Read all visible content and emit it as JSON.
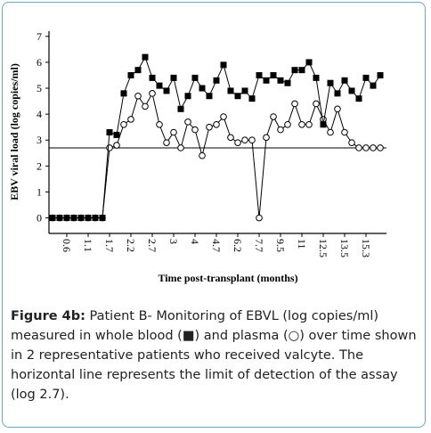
{
  "chart_data": {
    "type": "line",
    "y_label": "EBV viral load (log copies/ml)",
    "x_label": "Time post-transplant (months)",
    "categories": [
      null,
      null,
      "0.6",
      null,
      null,
      "1.1",
      null,
      null,
      "1.7",
      null,
      null,
      "2.2",
      null,
      null,
      "2.7",
      null,
      null,
      "3",
      null,
      null,
      "4",
      null,
      null,
      "4.7",
      null,
      null,
      "6.2",
      null,
      null,
      "7.7",
      null,
      null,
      "9.5",
      null,
      null,
      "11",
      null,
      null,
      "12.5",
      null,
      null,
      "13.5",
      null,
      null,
      "15.3",
      null,
      null
    ],
    "series": [
      {
        "name": "whole blood",
        "marker": "square",
        "color": "#000000",
        "values": [
          0,
          0,
          0,
          0,
          0,
          0,
          0,
          0,
          3.3,
          3.2,
          4.8,
          5.5,
          5.7,
          6.2,
          5.4,
          5.1,
          4.9,
          5.4,
          4.2,
          4.7,
          5.4,
          5.0,
          4.7,
          5.3,
          5.9,
          4.9,
          4.7,
          4.9,
          4.6,
          5.5,
          5.3,
          5.5,
          5.3,
          5.2,
          5.7,
          5.7,
          6.0,
          5.4,
          3.6,
          5.2,
          4.8,
          5.3,
          4.9,
          4.6,
          5.4,
          5.1,
          5.5
        ]
      },
      {
        "name": "plasma",
        "marker": "circle",
        "color": "#000000",
        "values": [
          0,
          0,
          0,
          0,
          0,
          0,
          0,
          0,
          2.7,
          2.8,
          3.6,
          3.8,
          4.7,
          4.3,
          4.8,
          3.6,
          2.9,
          3.3,
          2.7,
          3.7,
          3.4,
          2.4,
          3.5,
          3.6,
          3.9,
          3.1,
          2.9,
          3.0,
          3.0,
          0,
          3.1,
          3.9,
          3.4,
          3.6,
          4.4,
          3.6,
          3.6,
          4.4,
          3.8,
          3.3,
          4.2,
          3.3,
          2.9,
          2.7,
          2.7,
          2.7,
          2.7
        ]
      }
    ],
    "reference_line": 2.7,
    "ylim": [
      -0.6,
      7.2
    ],
    "yticks": [
      0,
      1,
      2,
      3,
      4,
      5,
      6,
      7
    ]
  },
  "caption": {
    "label": "Figure 4b:",
    "text": "Patient B- Monitoring of EBVL (log copies/ml) measured in whole blood (■) and plasma (○) over time shown in 2 representative patients who received valcyte. The horizontal line represents the limit of detection of the assay (log 2.7)."
  }
}
